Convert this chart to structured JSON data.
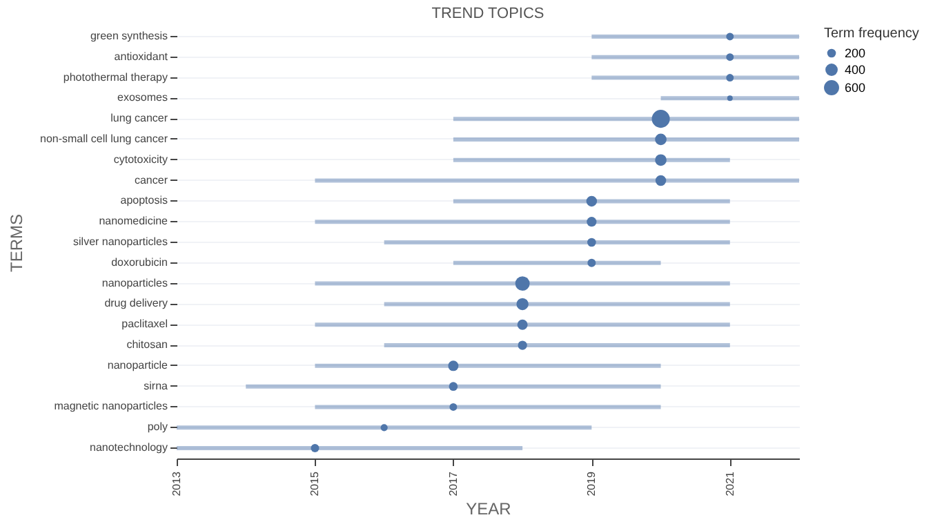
{
  "chart_data": {
    "type": "bubble",
    "orientation": "horizontal",
    "title": "TREND TOPICS",
    "xlabel": "YEAR",
    "ylabel": "TERMS",
    "legend_title": "Term frequency",
    "grid": "y",
    "color": "#4f76aa",
    "categories": [
      "green synthesis",
      "antioxidant",
      "photothermal therapy",
      "exosomes",
      "lung cancer",
      "non-small cell lung cancer",
      "cytotoxicity",
      "cancer",
      "apoptosis",
      "nanomedicine",
      "silver nanoparticles",
      "doxorubicin",
      "nanoparticles",
      "drug delivery",
      "paclitaxel",
      "chitosan",
      "nanoparticle",
      "sirna",
      "magnetic nanoparticles",
      "poly",
      "nanotechnology"
    ],
    "values": [
      2021,
      2021,
      2021,
      2021,
      2020,
      2020,
      2020,
      2020,
      2019,
      2019,
      2019,
      2019,
      2018,
      2018,
      2018,
      2018,
      2017,
      2017,
      2017,
      2016,
      2015
    ],
    "sizes": [
      150,
      150,
      150,
      80,
      850,
      350,
      350,
      300,
      300,
      250,
      200,
      180,
      550,
      380,
      280,
      220,
      280,
      200,
      150,
      130,
      180
    ],
    "size_legend": [
      200,
      400,
      600
    ],
    "errors": [
      [
        2019,
        2022
      ],
      [
        2019,
        2022
      ],
      [
        2019,
        2022
      ],
      [
        2020,
        2022
      ],
      [
        2017,
        2022
      ],
      [
        2017,
        2022
      ],
      [
        2017,
        2021
      ],
      [
        2015,
        2022
      ],
      [
        2017,
        2021
      ],
      [
        2015,
        2021
      ],
      [
        2016,
        2021
      ],
      [
        2017,
        2020
      ],
      [
        2015,
        2021
      ],
      [
        2016,
        2021
      ],
      [
        2015,
        2021
      ],
      [
        2016,
        2021
      ],
      [
        2015,
        2020
      ],
      [
        2014,
        2020
      ],
      [
        2015,
        2020
      ],
      [
        2013,
        2019
      ],
      [
        2013,
        2018
      ]
    ],
    "xlim": [
      2013,
      2022
    ],
    "xticks": [
      2013,
      2015,
      2017,
      2019,
      2021
    ]
  }
}
